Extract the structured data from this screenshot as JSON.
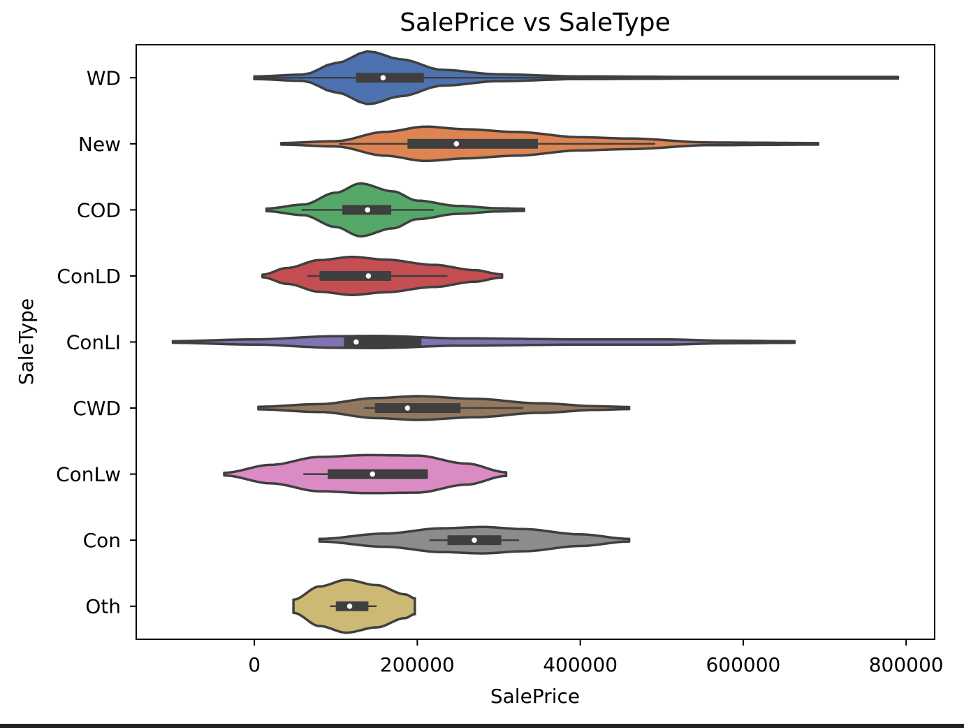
{
  "chart_data": {
    "type": "violin",
    "title": "SalePrice vs SaleType",
    "xlabel": "SalePrice",
    "ylabel": "SaleType",
    "xlim": [
      -145000,
      835000
    ],
    "xticks": [
      0,
      200000,
      400000,
      600000,
      800000
    ],
    "xtick_labels": [
      "0",
      "200000",
      "400000",
      "600000",
      "800000"
    ],
    "grid": false,
    "categories": [
      "WD",
      "New",
      "COD",
      "ConLD",
      "ConLI",
      "CWD",
      "ConLw",
      "Con",
      "Oth"
    ],
    "colors": [
      "#4c72b0",
      "#dd8452",
      "#55a868",
      "#c44e52",
      "#8172b3",
      "#937860",
      "#da8bc3",
      "#8c8c8c",
      "#ccb974"
    ],
    "series": [
      {
        "name": "WD",
        "min": 0,
        "q1": 125000,
        "median": 158000,
        "q3": 208000,
        "whisker_low": 0,
        "whisker_high": 790000,
        "max": 790000,
        "density": [
          [
            0,
            0.05
          ],
          [
            60000,
            0.12
          ],
          [
            100000,
            0.55
          ],
          [
            140000,
            1.0
          ],
          [
            180000,
            0.7
          ],
          [
            230000,
            0.3
          ],
          [
            300000,
            0.13
          ],
          [
            400000,
            0.05
          ],
          [
            550000,
            0.03
          ],
          [
            790000,
            0.03
          ]
        ]
      },
      {
        "name": "New",
        "min": 33000,
        "q1": 188000,
        "median": 248000,
        "q3": 348000,
        "whisker_low": 104000,
        "whisker_high": 492000,
        "max": 692000,
        "density": [
          [
            33000,
            0.03
          ],
          [
            100000,
            0.1
          ],
          [
            160000,
            0.45
          ],
          [
            210000,
            0.65
          ],
          [
            260000,
            0.55
          ],
          [
            320000,
            0.45
          ],
          [
            400000,
            0.25
          ],
          [
            460000,
            0.2
          ],
          [
            560000,
            0.05
          ],
          [
            692000,
            0.03
          ]
        ]
      },
      {
        "name": "COD",
        "min": 15000,
        "q1": 108000,
        "median": 139000,
        "q3": 168000,
        "whisker_low": 58000,
        "whisker_high": 220000,
        "max": 331000,
        "density": [
          [
            15000,
            0.05
          ],
          [
            60000,
            0.2
          ],
          [
            100000,
            0.65
          ],
          [
            130000,
            1.0
          ],
          [
            170000,
            0.7
          ],
          [
            200000,
            0.35
          ],
          [
            250000,
            0.15
          ],
          [
            300000,
            0.06
          ],
          [
            331000,
            0.04
          ]
        ]
      },
      {
        "name": "ConLD",
        "min": 10000,
        "q1": 80000,
        "median": 140000,
        "q3": 168000,
        "whisker_low": 65000,
        "whisker_high": 237000,
        "max": 304000,
        "density": [
          [
            10000,
            0.05
          ],
          [
            40000,
            0.3
          ],
          [
            80000,
            0.6
          ],
          [
            120000,
            0.72
          ],
          [
            160000,
            0.62
          ],
          [
            220000,
            0.42
          ],
          [
            270000,
            0.22
          ],
          [
            304000,
            0.06
          ]
        ]
      },
      {
        "name": "ConLI",
        "min": -100000,
        "q1": 110000,
        "median": 125000,
        "q3": 205000,
        "whisker_low": 110000,
        "whisker_high": 205000,
        "max": 663000,
        "density": [
          [
            -100000,
            0.03
          ],
          [
            0,
            0.1
          ],
          [
            100000,
            0.22
          ],
          [
            150000,
            0.23
          ],
          [
            250000,
            0.14
          ],
          [
            400000,
            0.1
          ],
          [
            500000,
            0.1
          ],
          [
            580000,
            0.05
          ],
          [
            663000,
            0.03
          ]
        ]
      },
      {
        "name": "CWD",
        "min": 5000,
        "q1": 148000,
        "median": 188000,
        "q3": 253000,
        "whisker_low": 135000,
        "whisker_high": 330000,
        "max": 460000,
        "density": [
          [
            5000,
            0.05
          ],
          [
            80000,
            0.15
          ],
          [
            150000,
            0.38
          ],
          [
            200000,
            0.45
          ],
          [
            270000,
            0.35
          ],
          [
            350000,
            0.18
          ],
          [
            420000,
            0.07
          ],
          [
            460000,
            0.04
          ]
        ]
      },
      {
        "name": "ConLw",
        "min": -37000,
        "q1": 90000,
        "median": 145000,
        "q3": 213000,
        "whisker_low": 60000,
        "whisker_high": 213000,
        "max": 309000,
        "density": [
          [
            -37000,
            0.05
          ],
          [
            20000,
            0.35
          ],
          [
            80000,
            0.65
          ],
          [
            140000,
            0.72
          ],
          [
            200000,
            0.7
          ],
          [
            260000,
            0.4
          ],
          [
            309000,
            0.07
          ]
        ]
      },
      {
        "name": "Con",
        "min": 80000,
        "q1": 237000,
        "median": 270000,
        "q3": 303000,
        "whisker_low": 215000,
        "whisker_high": 325000,
        "max": 460000,
        "density": [
          [
            80000,
            0.05
          ],
          [
            160000,
            0.25
          ],
          [
            230000,
            0.45
          ],
          [
            280000,
            0.5
          ],
          [
            330000,
            0.42
          ],
          [
            400000,
            0.22
          ],
          [
            460000,
            0.05
          ]
        ]
      },
      {
        "name": "Oth",
        "min": 48000,
        "q1": 100000,
        "median": 117000,
        "q3": 140000,
        "whisker_low": 93000,
        "whisker_high": 150000,
        "max": 197000,
        "density": [
          [
            48000,
            0.25
          ],
          [
            80000,
            0.75
          ],
          [
            113000,
            1.0
          ],
          [
            150000,
            0.8
          ],
          [
            185000,
            0.45
          ],
          [
            197000,
            0.3
          ]
        ]
      }
    ]
  }
}
